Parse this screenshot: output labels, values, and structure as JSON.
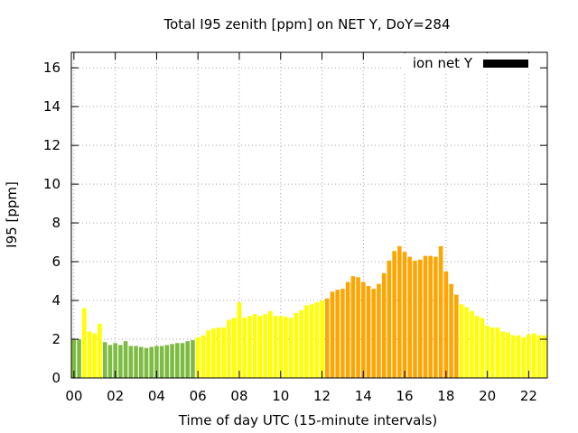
{
  "chart_data": {
    "type": "bar",
    "title": "Total I95 zenith [ppm] on NET Y, DoY=284",
    "xlabel": "Time of day UTC (15-minute intervals)",
    "ylabel": "I95 [ppm]",
    "ylim": [
      0,
      16.8
    ],
    "yticks": [
      0,
      2,
      4,
      6,
      8,
      10,
      12,
      14,
      16
    ],
    "xlim": [
      0,
      22.75
    ],
    "xticks": [
      0,
      2,
      4,
      6,
      8,
      10,
      12,
      14,
      16,
      18,
      20,
      22
    ],
    "xtick_labels": [
      "00",
      "02",
      "04",
      "06",
      "08",
      "10",
      "12",
      "14",
      "16",
      "18",
      "20",
      "22"
    ],
    "grid": true,
    "bar_width_hours": 0.2,
    "legend": {
      "label": "ion net Y",
      "color": "#000000",
      "placement": "top-right"
    },
    "colors": {
      "green": "#7dbb42",
      "yellow": "#ffff00",
      "orange": "#ffa500"
    },
    "bins": [
      {
        "t": 0.0,
        "v": 2.0,
        "c": "green"
      },
      {
        "t": 0.25,
        "v": 2.0,
        "c": "green"
      },
      {
        "t": 0.5,
        "v": 3.6,
        "c": "yellow"
      },
      {
        "t": 0.75,
        "v": 2.4,
        "c": "yellow"
      },
      {
        "t": 1.0,
        "v": 2.3,
        "c": "yellow"
      },
      {
        "t": 1.25,
        "v": 2.8,
        "c": "yellow"
      },
      {
        "t": 1.5,
        "v": 1.85,
        "c": "green"
      },
      {
        "t": 1.75,
        "v": 1.7,
        "c": "green"
      },
      {
        "t": 2.0,
        "v": 1.8,
        "c": "green"
      },
      {
        "t": 2.25,
        "v": 1.7,
        "c": "green"
      },
      {
        "t": 2.5,
        "v": 1.9,
        "c": "green"
      },
      {
        "t": 2.75,
        "v": 1.65,
        "c": "green"
      },
      {
        "t": 3.0,
        "v": 1.65,
        "c": "green"
      },
      {
        "t": 3.25,
        "v": 1.6,
        "c": "green"
      },
      {
        "t": 3.5,
        "v": 1.55,
        "c": "green"
      },
      {
        "t": 3.75,
        "v": 1.6,
        "c": "green"
      },
      {
        "t": 4.0,
        "v": 1.65,
        "c": "green"
      },
      {
        "t": 4.25,
        "v": 1.65,
        "c": "green"
      },
      {
        "t": 4.5,
        "v": 1.7,
        "c": "green"
      },
      {
        "t": 4.75,
        "v": 1.75,
        "c": "green"
      },
      {
        "t": 5.0,
        "v": 1.8,
        "c": "green"
      },
      {
        "t": 5.25,
        "v": 1.8,
        "c": "green"
      },
      {
        "t": 5.5,
        "v": 1.9,
        "c": "green"
      },
      {
        "t": 5.75,
        "v": 1.95,
        "c": "green"
      },
      {
        "t": 6.0,
        "v": 2.1,
        "c": "yellow"
      },
      {
        "t": 6.25,
        "v": 2.2,
        "c": "yellow"
      },
      {
        "t": 6.5,
        "v": 2.45,
        "c": "yellow"
      },
      {
        "t": 6.75,
        "v": 2.55,
        "c": "yellow"
      },
      {
        "t": 7.0,
        "v": 2.6,
        "c": "yellow"
      },
      {
        "t": 7.25,
        "v": 2.6,
        "c": "yellow"
      },
      {
        "t": 7.5,
        "v": 3.0,
        "c": "yellow"
      },
      {
        "t": 7.75,
        "v": 3.1,
        "c": "yellow"
      },
      {
        "t": 8.0,
        "v": 3.9,
        "c": "yellow"
      },
      {
        "t": 8.25,
        "v": 3.1,
        "c": "yellow"
      },
      {
        "t": 8.5,
        "v": 3.2,
        "c": "yellow"
      },
      {
        "t": 8.75,
        "v": 3.3,
        "c": "yellow"
      },
      {
        "t": 9.0,
        "v": 3.2,
        "c": "yellow"
      },
      {
        "t": 9.25,
        "v": 3.3,
        "c": "yellow"
      },
      {
        "t": 9.5,
        "v": 3.45,
        "c": "yellow"
      },
      {
        "t": 9.75,
        "v": 3.2,
        "c": "yellow"
      },
      {
        "t": 10.0,
        "v": 3.2,
        "c": "yellow"
      },
      {
        "t": 10.25,
        "v": 3.15,
        "c": "yellow"
      },
      {
        "t": 10.5,
        "v": 3.1,
        "c": "yellow"
      },
      {
        "t": 10.75,
        "v": 3.35,
        "c": "yellow"
      },
      {
        "t": 11.0,
        "v": 3.5,
        "c": "yellow"
      },
      {
        "t": 11.25,
        "v": 3.75,
        "c": "yellow"
      },
      {
        "t": 11.5,
        "v": 3.8,
        "c": "yellow"
      },
      {
        "t": 11.75,
        "v": 3.9,
        "c": "yellow"
      },
      {
        "t": 12.0,
        "v": 4.0,
        "c": "yellow"
      },
      {
        "t": 12.25,
        "v": 4.1,
        "c": "orange"
      },
      {
        "t": 12.5,
        "v": 4.45,
        "c": "orange"
      },
      {
        "t": 12.75,
        "v": 4.55,
        "c": "orange"
      },
      {
        "t": 13.0,
        "v": 4.6,
        "c": "orange"
      },
      {
        "t": 13.25,
        "v": 4.95,
        "c": "orange"
      },
      {
        "t": 13.5,
        "v": 5.25,
        "c": "orange"
      },
      {
        "t": 13.75,
        "v": 5.2,
        "c": "orange"
      },
      {
        "t": 14.0,
        "v": 4.95,
        "c": "orange"
      },
      {
        "t": 14.25,
        "v": 4.75,
        "c": "orange"
      },
      {
        "t": 14.5,
        "v": 4.6,
        "c": "orange"
      },
      {
        "t": 14.75,
        "v": 4.85,
        "c": "orange"
      },
      {
        "t": 15.0,
        "v": 5.4,
        "c": "orange"
      },
      {
        "t": 15.25,
        "v": 6.05,
        "c": "orange"
      },
      {
        "t": 15.5,
        "v": 6.55,
        "c": "orange"
      },
      {
        "t": 15.75,
        "v": 6.8,
        "c": "orange"
      },
      {
        "t": 16.0,
        "v": 6.5,
        "c": "orange"
      },
      {
        "t": 16.25,
        "v": 6.25,
        "c": "orange"
      },
      {
        "t": 16.5,
        "v": 6.05,
        "c": "orange"
      },
      {
        "t": 16.75,
        "v": 6.1,
        "c": "orange"
      },
      {
        "t": 17.0,
        "v": 6.3,
        "c": "orange"
      },
      {
        "t": 17.25,
        "v": 6.3,
        "c": "orange"
      },
      {
        "t": 17.5,
        "v": 6.25,
        "c": "orange"
      },
      {
        "t": 17.75,
        "v": 6.8,
        "c": "orange"
      },
      {
        "t": 18.0,
        "v": 5.5,
        "c": "orange"
      },
      {
        "t": 18.25,
        "v": 4.85,
        "c": "orange"
      },
      {
        "t": 18.5,
        "v": 4.3,
        "c": "orange"
      },
      {
        "t": 18.75,
        "v": 3.8,
        "c": "yellow"
      },
      {
        "t": 19.0,
        "v": 3.65,
        "c": "yellow"
      },
      {
        "t": 19.25,
        "v": 3.45,
        "c": "yellow"
      },
      {
        "t": 19.5,
        "v": 3.2,
        "c": "yellow"
      },
      {
        "t": 19.75,
        "v": 3.1,
        "c": "yellow"
      },
      {
        "t": 20.0,
        "v": 2.7,
        "c": "yellow"
      },
      {
        "t": 20.25,
        "v": 2.6,
        "c": "yellow"
      },
      {
        "t": 20.5,
        "v": 2.6,
        "c": "yellow"
      },
      {
        "t": 20.75,
        "v": 2.4,
        "c": "yellow"
      },
      {
        "t": 21.0,
        "v": 2.35,
        "c": "yellow"
      },
      {
        "t": 21.25,
        "v": 2.2,
        "c": "yellow"
      },
      {
        "t": 21.5,
        "v": 2.2,
        "c": "yellow"
      },
      {
        "t": 21.75,
        "v": 2.1,
        "c": "yellow"
      },
      {
        "t": 22.0,
        "v": 2.25,
        "c": "yellow"
      },
      {
        "t": 22.25,
        "v": 2.3,
        "c": "yellow"
      },
      {
        "t": 22.5,
        "v": 2.2,
        "c": "yellow"
      },
      {
        "t": 22.75,
        "v": 2.2,
        "c": "yellow"
      }
    ]
  }
}
